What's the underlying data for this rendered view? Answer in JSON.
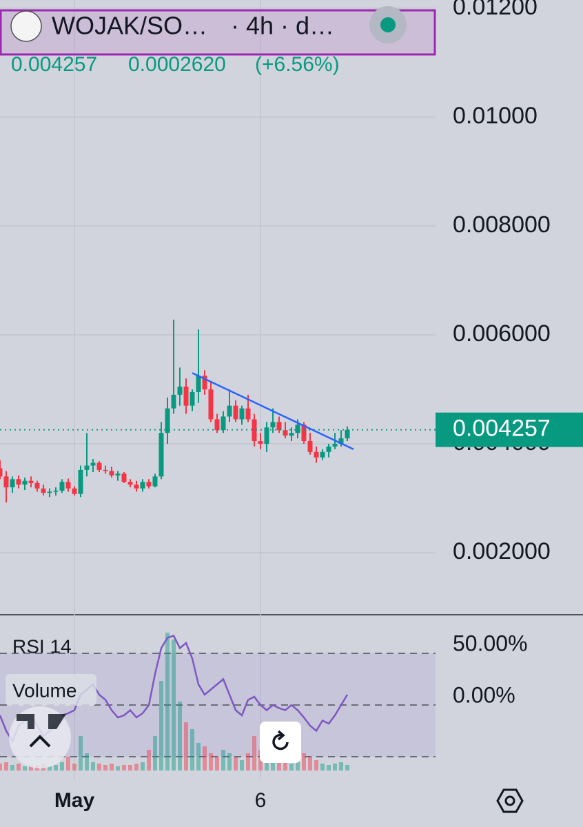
{
  "header": {
    "symbol": "WOJAK/SO…",
    "interval": "· 4h · d…",
    "last": "0.004257",
    "change": "0.0002620",
    "change_pct": "(+6.56%)"
  },
  "chart_data": {
    "type": "candlestick",
    "ylim": [
      0.000886,
      0.01215
    ],
    "yticks": [
      {
        "value": 0.012,
        "label": "0.01200"
      },
      {
        "value": 0.01,
        "label": "0.01000"
      },
      {
        "value": 0.008,
        "label": "0.008000"
      },
      {
        "value": 0.006,
        "label": "0.006000"
      },
      {
        "value": 0.004,
        "label": "0.004000"
      },
      {
        "value": 0.002,
        "label": "0.002000"
      }
    ],
    "xticks": [
      {
        "value": 12,
        "label": "May"
      },
      {
        "value": 42,
        "label": "6"
      }
    ],
    "up_color": "#089981",
    "down_color": "#f23645",
    "open": [
      0.00355,
      0.0034,
      0.0032,
      0.00335,
      0.00325,
      0.00332,
      0.00328,
      0.00318,
      0.0031,
      0.00312,
      0.00314,
      0.0033,
      0.00318,
      0.00308,
      0.00352,
      0.0036,
      0.00365,
      0.00352,
      0.0035,
      0.00342,
      0.00345,
      0.0033,
      0.00325,
      0.00318,
      0.0033,
      0.00322,
      0.0034,
      0.0042,
      0.00465,
      0.0049,
      0.00505,
      0.0047,
      0.00495,
      0.00525,
      0.005,
      0.00445,
      0.00425,
      0.0045,
      0.0047,
      0.00445,
      0.00465,
      0.00445,
      0.00405,
      0.004,
      0.0043,
      0.0044,
      0.00425,
      0.00415,
      0.0042,
      0.00435,
      0.00405,
      0.00385,
      0.00375,
      0.00385,
      0.00395,
      0.004,
      0.0041
    ],
    "high": [
      0.0037,
      0.0035,
      0.0034,
      0.00342,
      0.00338,
      0.0034,
      0.00332,
      0.00325,
      0.00318,
      0.0032,
      0.00335,
      0.00336,
      0.00322,
      0.0036,
      0.0042,
      0.00372,
      0.00368,
      0.0036,
      0.00358,
      0.0035,
      0.00348,
      0.00335,
      0.00332,
      0.00335,
      0.00335,
      0.00345,
      0.0044,
      0.00485,
      0.00628,
      0.0054,
      0.0052,
      0.005,
      0.0061,
      0.00535,
      0.00515,
      0.00455,
      0.0046,
      0.005,
      0.0048,
      0.0047,
      0.0049,
      0.00455,
      0.0042,
      0.0044,
      0.00465,
      0.0045,
      0.0044,
      0.0043,
      0.00445,
      0.0044,
      0.0042,
      0.00395,
      0.0039,
      0.004,
      0.0042,
      0.00425,
      0.00432
    ],
    "low": [
      0.00335,
      0.00292,
      0.0031,
      0.00318,
      0.00315,
      0.0032,
      0.00312,
      0.00305,
      0.00302,
      0.00305,
      0.0031,
      0.00312,
      0.00305,
      0.00302,
      0.0034,
      0.00348,
      0.00348,
      0.00345,
      0.00338,
      0.00332,
      0.00328,
      0.0032,
      0.00312,
      0.00312,
      0.00318,
      0.0032,
      0.00335,
      0.004,
      0.00455,
      0.0047,
      0.00455,
      0.0046,
      0.00475,
      0.0049,
      0.0044,
      0.0042,
      0.0042,
      0.0044,
      0.0044,
      0.00435,
      0.0044,
      0.00395,
      0.0039,
      0.00385,
      0.0042,
      0.0042,
      0.0041,
      0.00405,
      0.0041,
      0.004,
      0.0038,
      0.00365,
      0.0037,
      0.00375,
      0.0039,
      0.00395,
      0.00405
    ],
    "close": [
      0.0034,
      0.0032,
      0.00335,
      0.00325,
      0.00332,
      0.00328,
      0.00318,
      0.0031,
      0.00312,
      0.00314,
      0.0033,
      0.00318,
      0.00308,
      0.00352,
      0.0036,
      0.00365,
      0.00352,
      0.0035,
      0.00342,
      0.00345,
      0.0033,
      0.00325,
      0.00318,
      0.0033,
      0.00322,
      0.0034,
      0.0042,
      0.00465,
      0.0049,
      0.00505,
      0.0047,
      0.00495,
      0.00525,
      0.005,
      0.00445,
      0.00425,
      0.0045,
      0.0047,
      0.00445,
      0.00465,
      0.00445,
      0.00405,
      0.004,
      0.0043,
      0.0044,
      0.00425,
      0.00415,
      0.0042,
      0.00435,
      0.00405,
      0.00385,
      0.00375,
      0.00385,
      0.00395,
      0.004,
      0.0041,
      0.004257
    ],
    "last_price": 0.004257,
    "trendline": {
      "x": [
        31,
        57
      ],
      "y": [
        0.0053,
        0.0039
      ],
      "color": "#2962ff"
    },
    "rsi": {
      "label": "RSI 14",
      "color": "#7e57c2",
      "ylim": [
        -71.3,
        85.3
      ],
      "yticks": [
        {
          "value": 50,
          "label": "50.00%"
        },
        {
          "value": 0,
          "label": "0.00%"
        },
        {
          "value": -50,
          "label": null
        }
      ],
      "values": [
        -10,
        -25,
        -35,
        -20,
        -15,
        -10,
        -20,
        -30,
        -25,
        -20,
        -10,
        -8,
        -5,
        10,
        15,
        20,
        10,
        5,
        -5,
        -12,
        -10,
        -5,
        -12,
        -8,
        0,
        30,
        55,
        65,
        67,
        55,
        60,
        45,
        20,
        10,
        15,
        20,
        25,
        10,
        -5,
        -10,
        5,
        8,
        0,
        -5,
        0,
        -3,
        -5,
        0,
        -5,
        -12,
        -20,
        -25,
        -15,
        -18,
        -10,
        0,
        10
      ]
    },
    "volume": {
      "label": "Volume",
      "values": [
        10,
        12,
        8,
        10,
        6,
        8,
        8,
        10,
        6,
        8,
        12,
        20,
        10,
        50,
        25,
        12,
        10,
        8,
        10,
        6,
        8,
        8,
        10,
        12,
        30,
        50,
        130,
        200,
        190,
        100,
        70,
        60,
        40,
        35,
        25,
        20,
        30,
        25,
        20,
        15,
        25,
        50,
        30,
        25,
        20,
        15,
        15,
        10,
        20,
        25,
        20,
        15,
        10,
        8,
        10,
        12,
        8
      ]
    }
  }
}
